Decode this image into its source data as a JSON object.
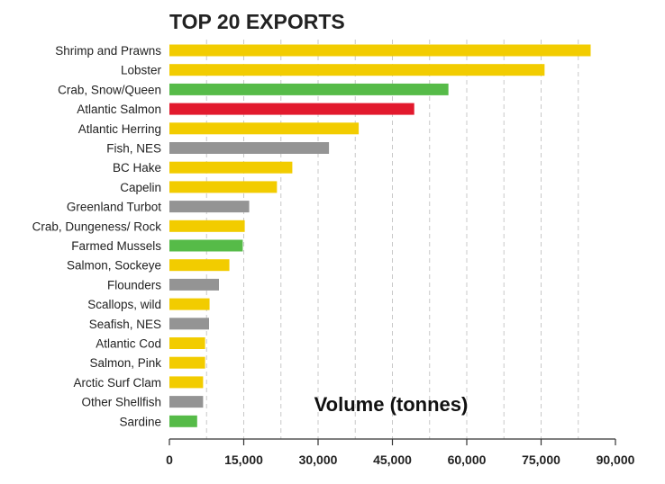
{
  "chart_data": {
    "type": "bar",
    "orientation": "horizontal",
    "title": "TOP 20 EXPORTS",
    "xlabel": "Volume (tonnes)",
    "ylabel": "",
    "xlim": [
      0,
      90000
    ],
    "xticks": [
      0,
      15000,
      30000,
      45000,
      60000,
      75000,
      90000
    ],
    "xtick_labels": [
      "0",
      "15,000",
      "30,000",
      "45,000",
      "60,000",
      "75,000",
      "90,000"
    ],
    "grid": true,
    "categories": [
      "Shrimp and Prawns",
      "Lobster",
      "Crab, Snow/Queen",
      "Atlantic Salmon",
      "Atlantic Herring",
      "Fish, NES",
      "BC Hake",
      "Capelin",
      "Greenland Turbot",
      "Crab, Dungeness/ Rock",
      "Farmed Mussels",
      "Salmon, Sockeye",
      "Flounders",
      "Scallops, wild",
      "Seafish, NES",
      "Atlantic Cod",
      "Salmon, Pink",
      "Arctic Surf Clam",
      "Other Shellfish",
      "Sardine"
    ],
    "values": [
      85000,
      75700,
      56300,
      49400,
      38200,
      32200,
      24800,
      21700,
      16100,
      15200,
      14800,
      12100,
      10000,
      8100,
      8000,
      7200,
      7200,
      6800,
      6800,
      5600
    ],
    "colors": [
      "#f2cc00",
      "#f2cc00",
      "#56bb48",
      "#e2192d",
      "#f2cc00",
      "#949494",
      "#f2cc00",
      "#f2cc00",
      "#949494",
      "#f2cc00",
      "#56bb48",
      "#f2cc00",
      "#949494",
      "#f2cc00",
      "#949494",
      "#f2cc00",
      "#f2cc00",
      "#f2cc00",
      "#949494",
      "#56bb48"
    ]
  }
}
